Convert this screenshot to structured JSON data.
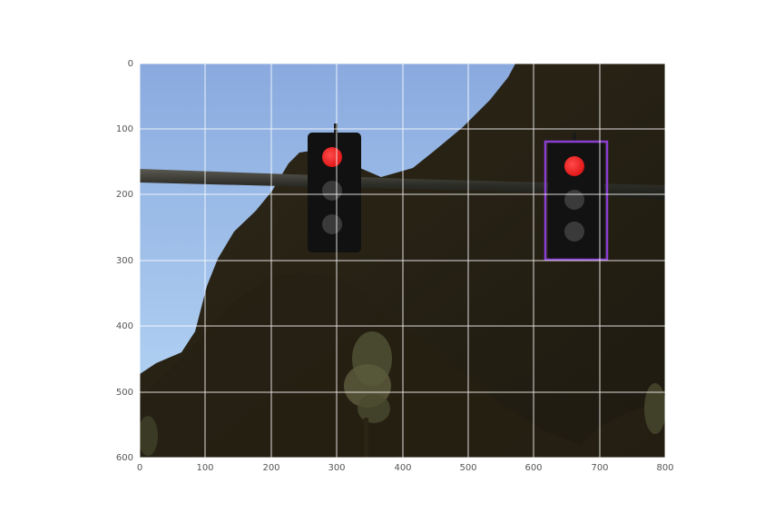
{
  "axes": {
    "x_ticks": [
      "0",
      "100",
      "200",
      "300",
      "400",
      "500",
      "600",
      "700",
      "800"
    ],
    "y_ticks": [
      "0",
      "100",
      "200",
      "300",
      "400",
      "500",
      "600"
    ],
    "xlim": [
      0,
      800
    ],
    "ylim": [
      600,
      0
    ],
    "grid": true,
    "grid_color": "#ffffff"
  },
  "scene": {
    "description_colors": {
      "sky_top": "#8eaee0",
      "sky_bottom": "#b6d6f5",
      "hill": "#2b2516",
      "pole": "#3a3a35",
      "light_red": "#ff2a2a",
      "light_off": "#3c3c3c"
    },
    "traffic_lights": [
      {
        "name": "left",
        "state": "red"
      },
      {
        "name": "right",
        "state": "red"
      }
    ]
  },
  "detection_box": {
    "color": "#8a3fd1",
    "x_range": [
      618,
      713
    ],
    "y_range": [
      118,
      299
    ]
  }
}
